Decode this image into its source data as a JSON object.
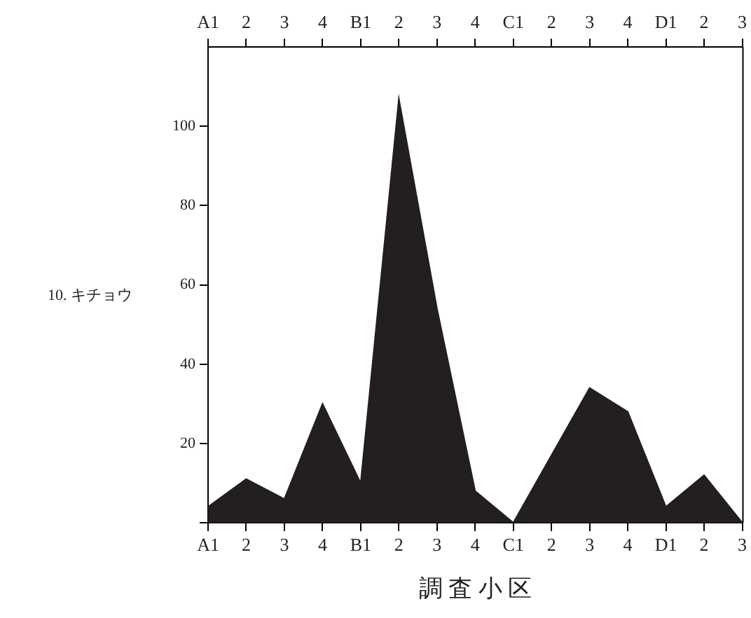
{
  "chart_data": {
    "type": "area",
    "xlabel": "調 査 小 区",
    "ylabel": "10. キチョウ",
    "categories": [
      "A1",
      "2",
      "3",
      "4",
      "B1",
      "2",
      "3",
      "4",
      "C1",
      "2",
      "3",
      "4",
      "D1",
      "2",
      "3"
    ],
    "series": [
      {
        "color": "#231f20",
        "values": [
          4,
          11,
          6,
          30,
          10,
          107,
          54,
          8,
          0,
          17,
          34,
          28,
          4,
          12,
          0
        ]
      }
    ],
    "ylim": [
      0,
      120
    ],
    "yticks": [
      {
        "value": 0,
        "label": null
      },
      20,
      40,
      60,
      80,
      100
    ],
    "grid": false,
    "legend": false
  }
}
